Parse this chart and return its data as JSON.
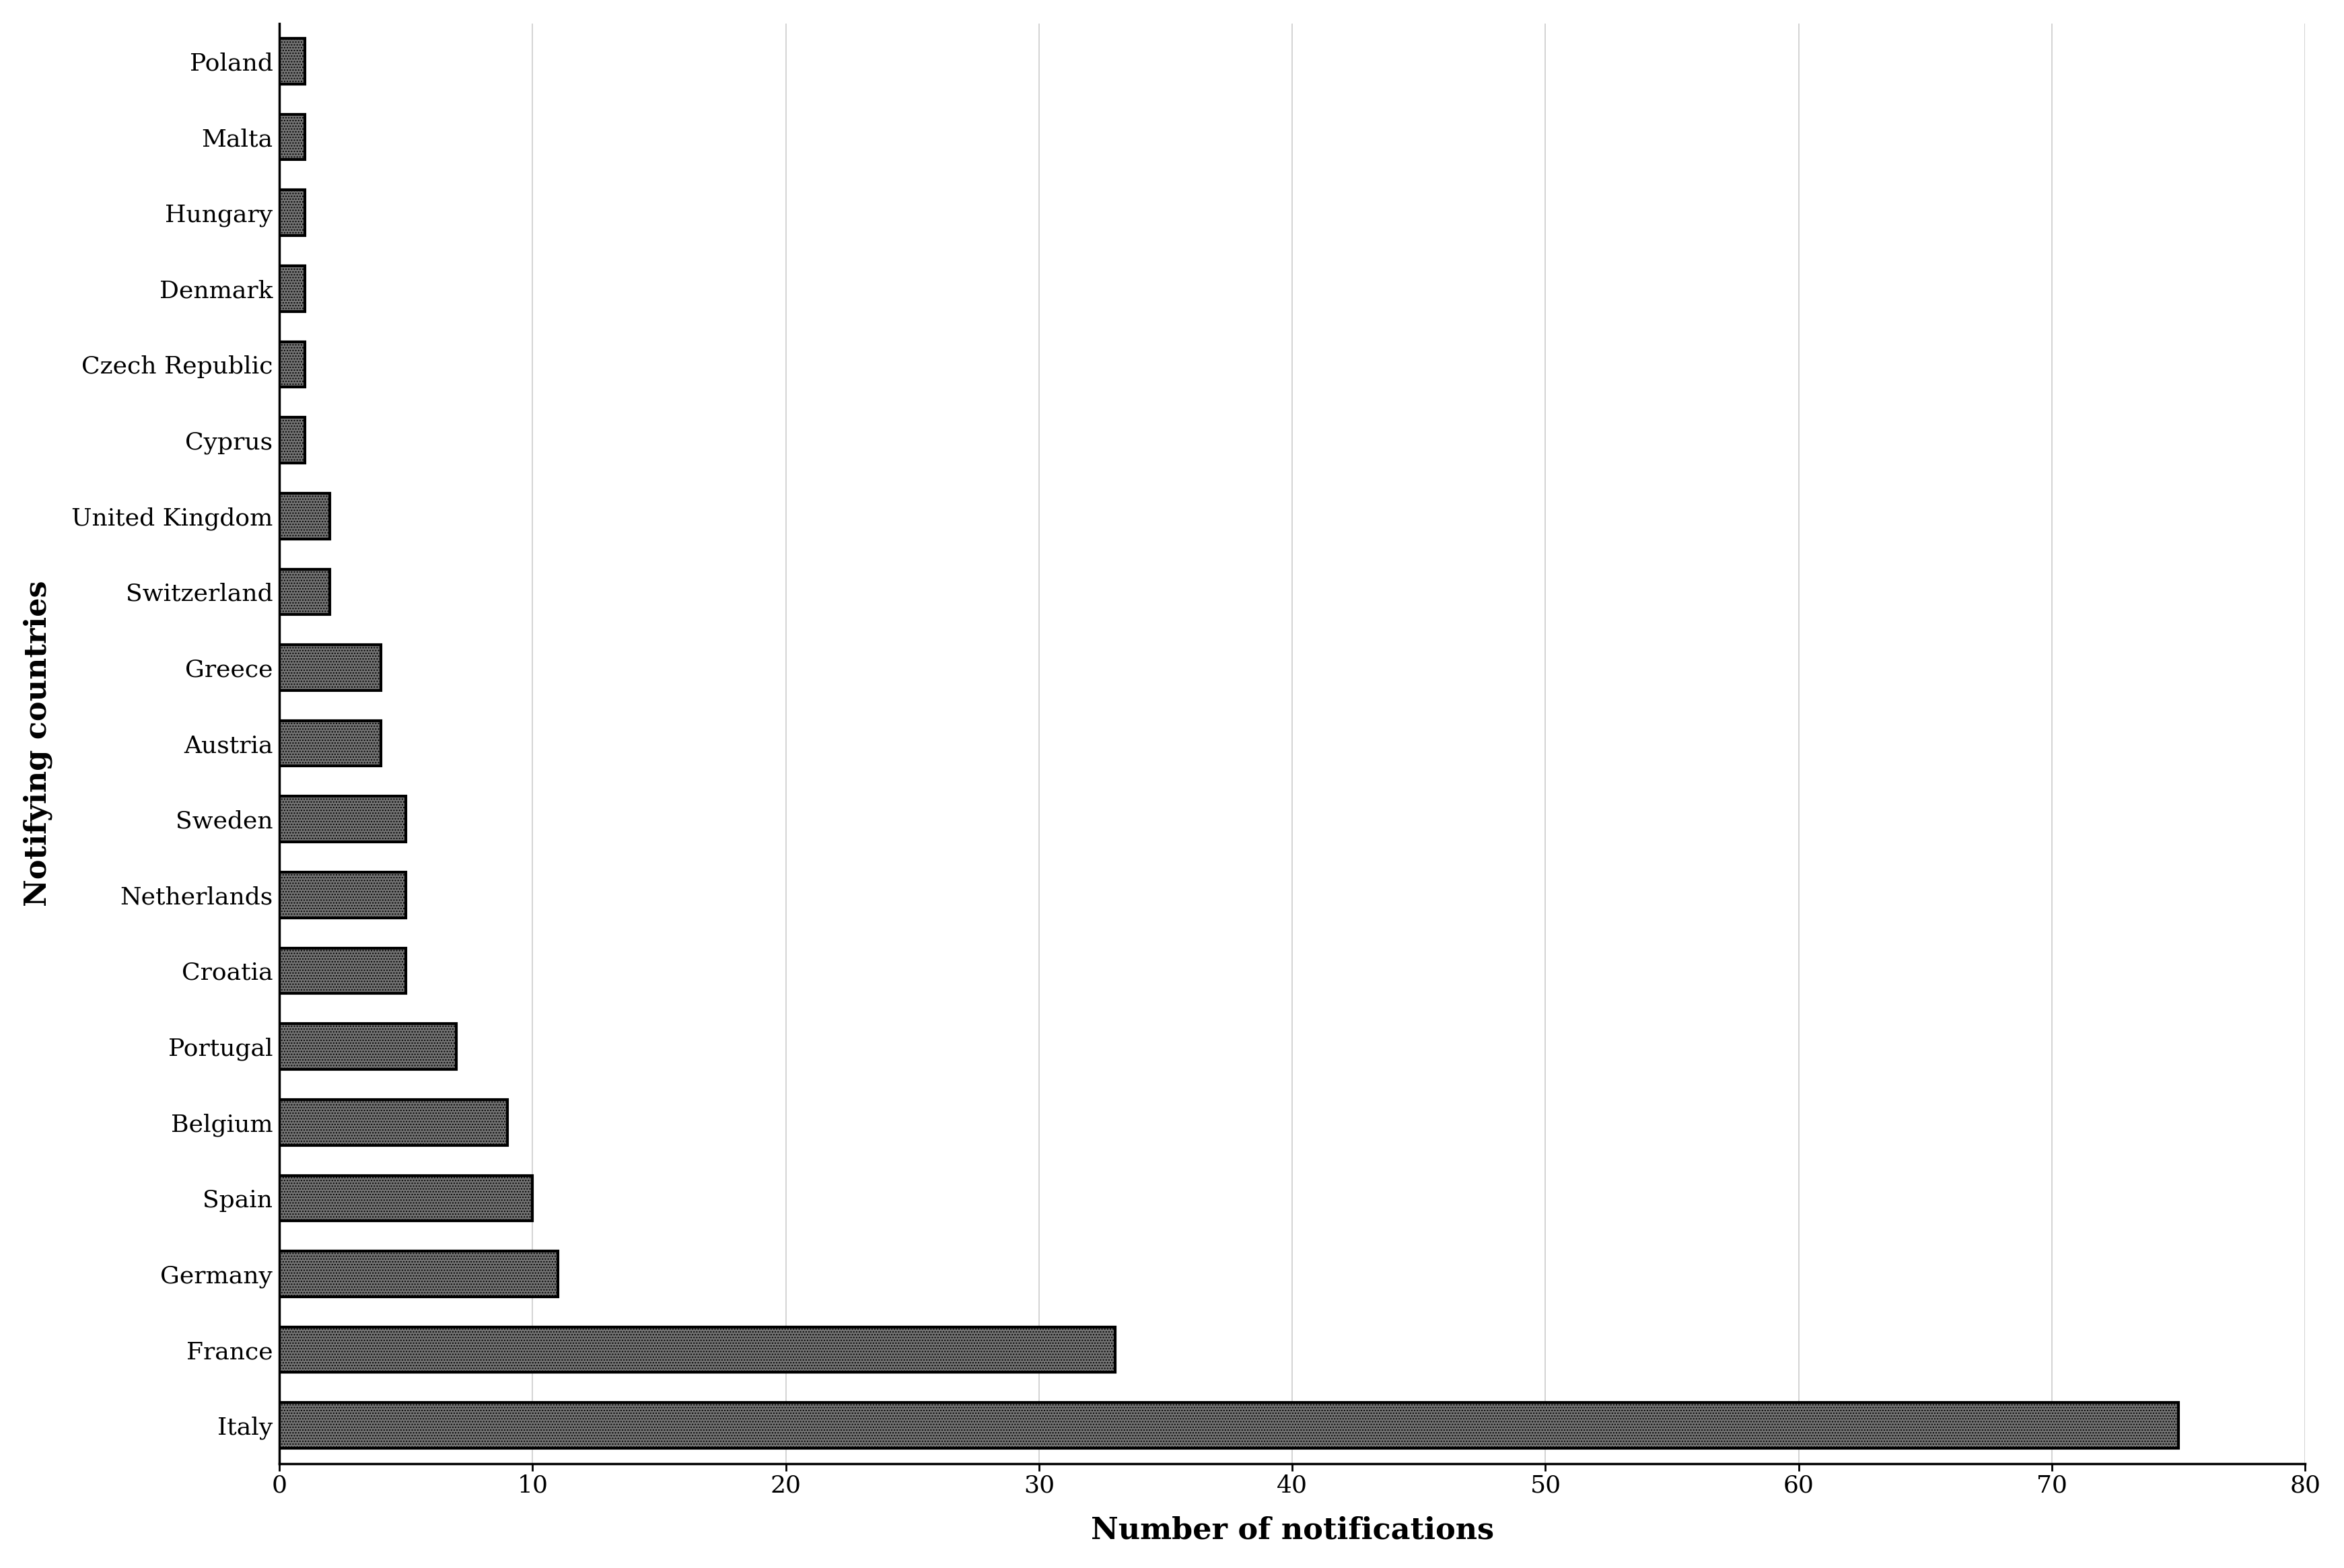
{
  "categories": [
    "Italy",
    "France",
    "Germany",
    "Spain",
    "Belgium",
    "Portugal",
    "Croatia",
    "Netherlands",
    "Sweden",
    "Austria",
    "Greece",
    "Switzerland",
    "United Kingdom",
    "Cyprus",
    "Czech Republic",
    "Denmark",
    "Hungary",
    "Malta",
    "Poland"
  ],
  "values": [
    75,
    33,
    11,
    10,
    9,
    7,
    5,
    5,
    5,
    4,
    4,
    2,
    2,
    1,
    1,
    1,
    1,
    1,
    1
  ],
  "bar_facecolor": "#737373",
  "bar_edgecolor": "#000000",
  "hatch": "....",
  "hatch_color": "#ffffff",
  "xlabel": "Number of notifications",
  "ylabel": "Notifying countries",
  "xlim": [
    0,
    80
  ],
  "xticks": [
    0,
    10,
    20,
    30,
    40,
    50,
    60,
    70,
    80
  ],
  "title": "",
  "tick_fontsize": 26,
  "label_fontsize": 32,
  "bar_height": 0.6,
  "grid_color": "#cccccc",
  "background_color": "#ffffff",
  "linewidth": 3.0
}
